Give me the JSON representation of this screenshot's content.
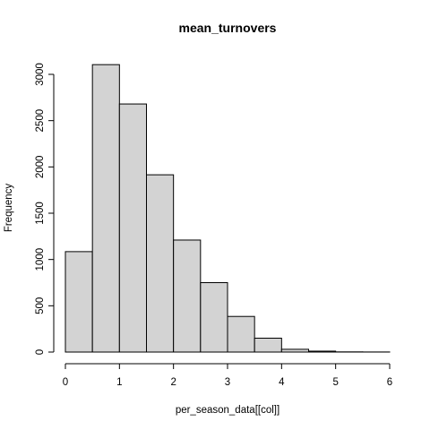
{
  "chart_data": {
    "type": "histogram",
    "title": "mean_turnovers",
    "xlabel": "per_season_data[[col]]",
    "ylabel": "Frequency",
    "bins": [
      {
        "x0": 0.0,
        "x1": 0.5,
        "count": 1085
      },
      {
        "x0": 0.5,
        "x1": 1.0,
        "count": 3105
      },
      {
        "x0": 1.0,
        "x1": 1.5,
        "count": 2680
      },
      {
        "x0": 1.5,
        "x1": 2.0,
        "count": 1915
      },
      {
        "x0": 2.0,
        "x1": 2.5,
        "count": 1210
      },
      {
        "x0": 2.5,
        "x1": 3.0,
        "count": 750
      },
      {
        "x0": 3.0,
        "x1": 3.5,
        "count": 385
      },
      {
        "x0": 3.5,
        "x1": 4.0,
        "count": 150
      },
      {
        "x0": 4.0,
        "x1": 4.5,
        "count": 30
      },
      {
        "x0": 4.5,
        "x1": 5.0,
        "count": 10
      },
      {
        "x0": 5.0,
        "x1": 5.5,
        "count": 2
      },
      {
        "x0": 5.5,
        "x1": 6.0,
        "count": 1
      }
    ],
    "xlim": [
      0,
      6
    ],
    "ylim": [
      0,
      3000
    ],
    "x_ticks": [
      0,
      1,
      2,
      3,
      4,
      5,
      6
    ],
    "y_ticks": [
      0,
      500,
      1000,
      1500,
      2000,
      2500,
      3000
    ],
    "bar_fill": "#d3d3d3",
    "bar_stroke": "#000000",
    "grid": false,
    "legend": "none"
  }
}
